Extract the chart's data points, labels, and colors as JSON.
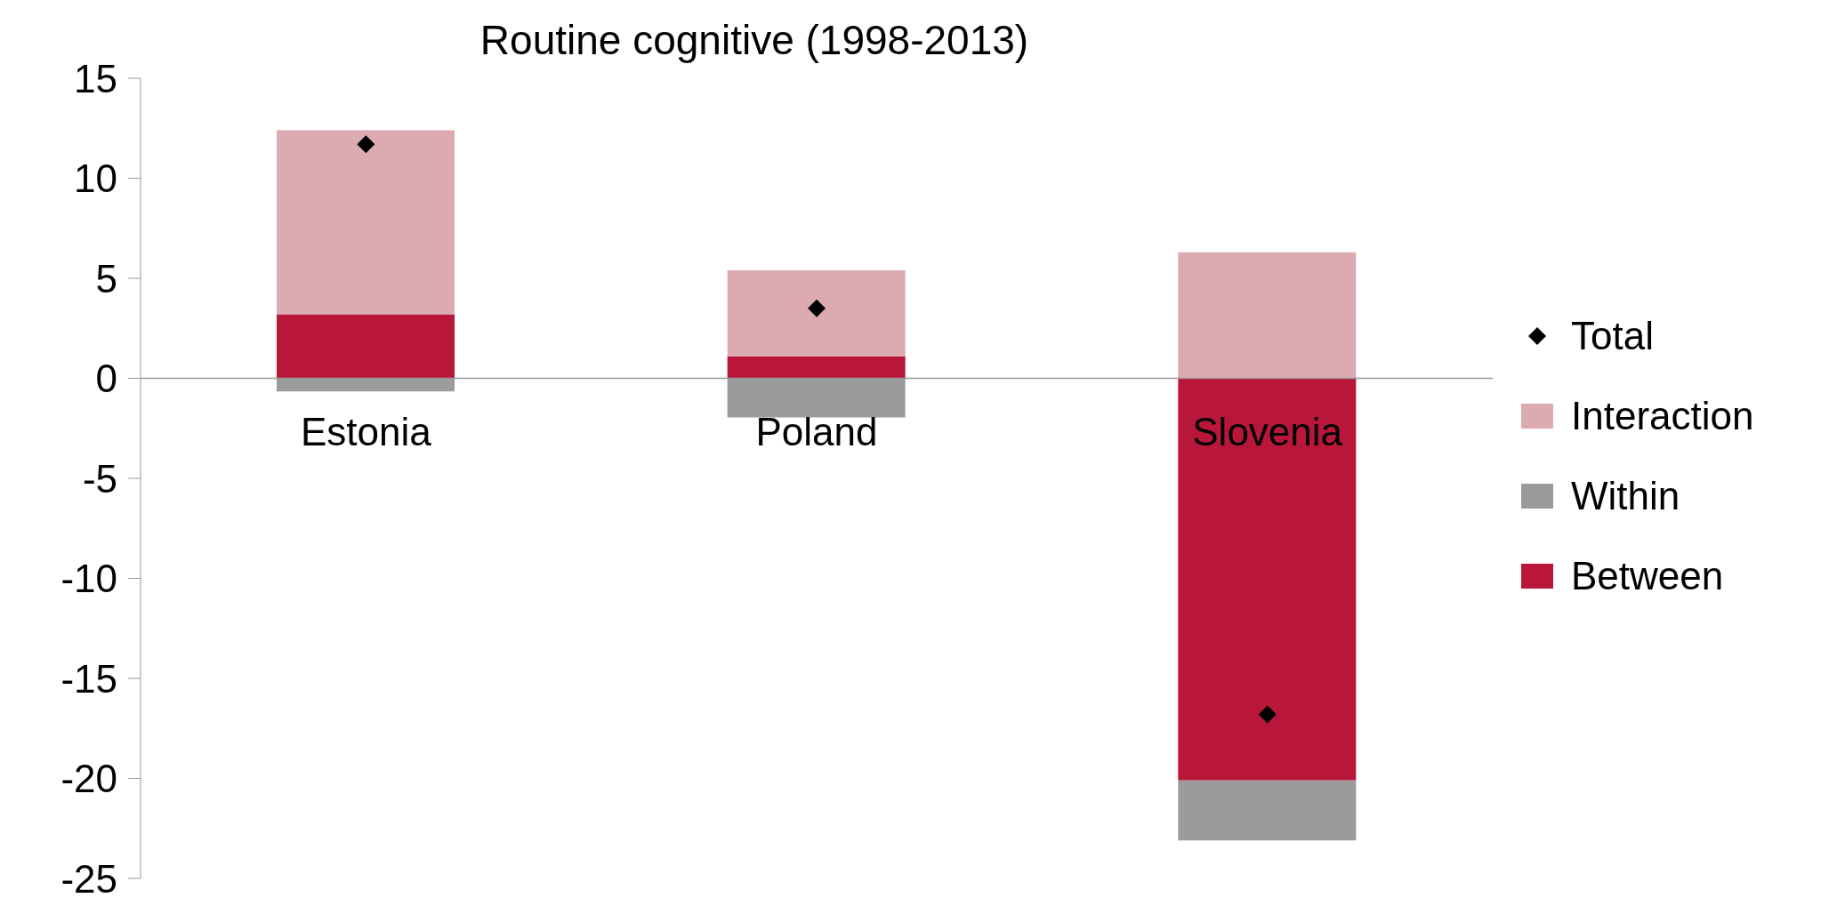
{
  "chart_data": {
    "type": "bar",
    "title": "Routine cognitive (1998-2013)",
    "categories": [
      "Estonia",
      "Poland",
      "Slovenia"
    ],
    "stacked": true,
    "series": [
      {
        "name": "Between",
        "color": "#b8173a",
        "values": [
          3.2,
          1.1,
          -20.1
        ]
      },
      {
        "name": "Within",
        "color": "#9b9b9b",
        "values": [
          -0.65,
          -1.95,
          -3.0
        ]
      },
      {
        "name": "Interaction",
        "color": "#dcaab1",
        "values": [
          9.2,
          4.3,
          6.3
        ]
      },
      {
        "name": "Total",
        "type": "scatter",
        "color": "#000000",
        "values": [
          11.7,
          3.5,
          -16.8
        ]
      }
    ],
    "marker": "diamond",
    "ylim": [
      -25,
      15
    ],
    "yticks": [
      -25,
      -20,
      -15,
      -10,
      -5,
      0,
      5,
      10,
      15
    ],
    "grid": false,
    "legend": "right"
  }
}
